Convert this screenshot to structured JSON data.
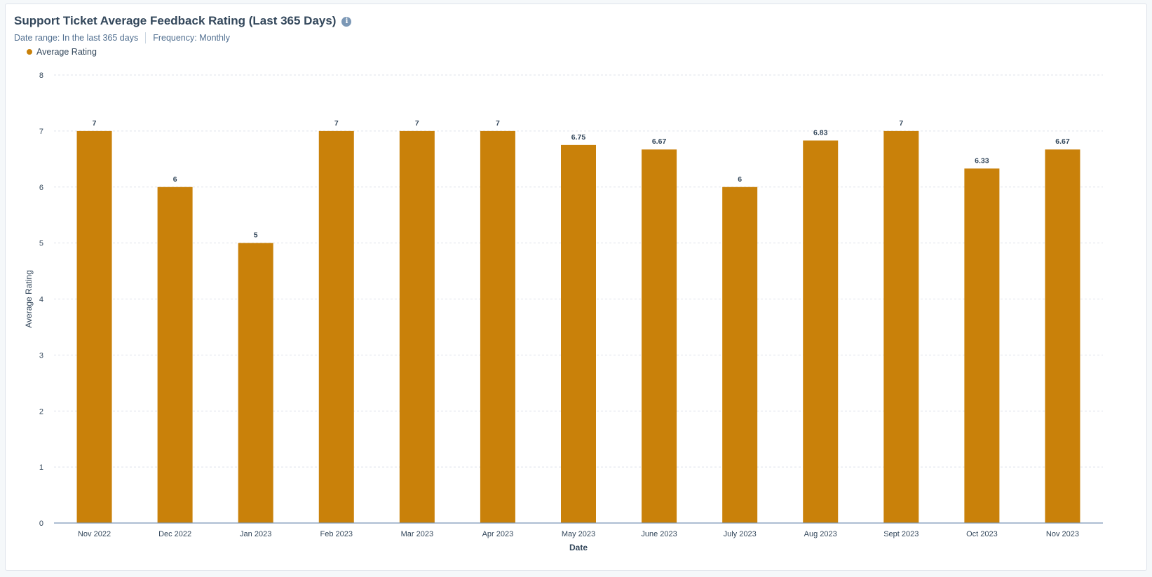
{
  "header": {
    "title": "Support Ticket Average Feedback Rating (Last 365 Days)",
    "date_range": "Date range: In the last 365 days",
    "frequency": "Frequency: Monthly",
    "info_icon_glyph": "i"
  },
  "colors": {
    "bar": "#c9810a",
    "grid": "#dfe3eb",
    "axis": "#7c98b6"
  },
  "chart_data": {
    "type": "bar",
    "title": "Support Ticket Average Feedback Rating (Last 365 Days)",
    "xlabel": "Date",
    "ylabel": "Average Rating",
    "ylim": [
      0,
      8
    ],
    "yticks": [
      0,
      1,
      2,
      3,
      4,
      5,
      6,
      7,
      8
    ],
    "grid": true,
    "legend": "top-left",
    "categories": [
      "Nov 2022",
      "Dec 2022",
      "Jan 2023",
      "Feb 2023",
      "Mar 2023",
      "Apr 2023",
      "May 2023",
      "June 2023",
      "July 2023",
      "Aug 2023",
      "Sept 2023",
      "Oct 2023",
      "Nov 2023"
    ],
    "series": [
      {
        "name": "Average Rating",
        "values": [
          7,
          6,
          5,
          7,
          7,
          7,
          6.75,
          6.67,
          6,
          6.83,
          7,
          6.33,
          6.67
        ]
      }
    ]
  }
}
